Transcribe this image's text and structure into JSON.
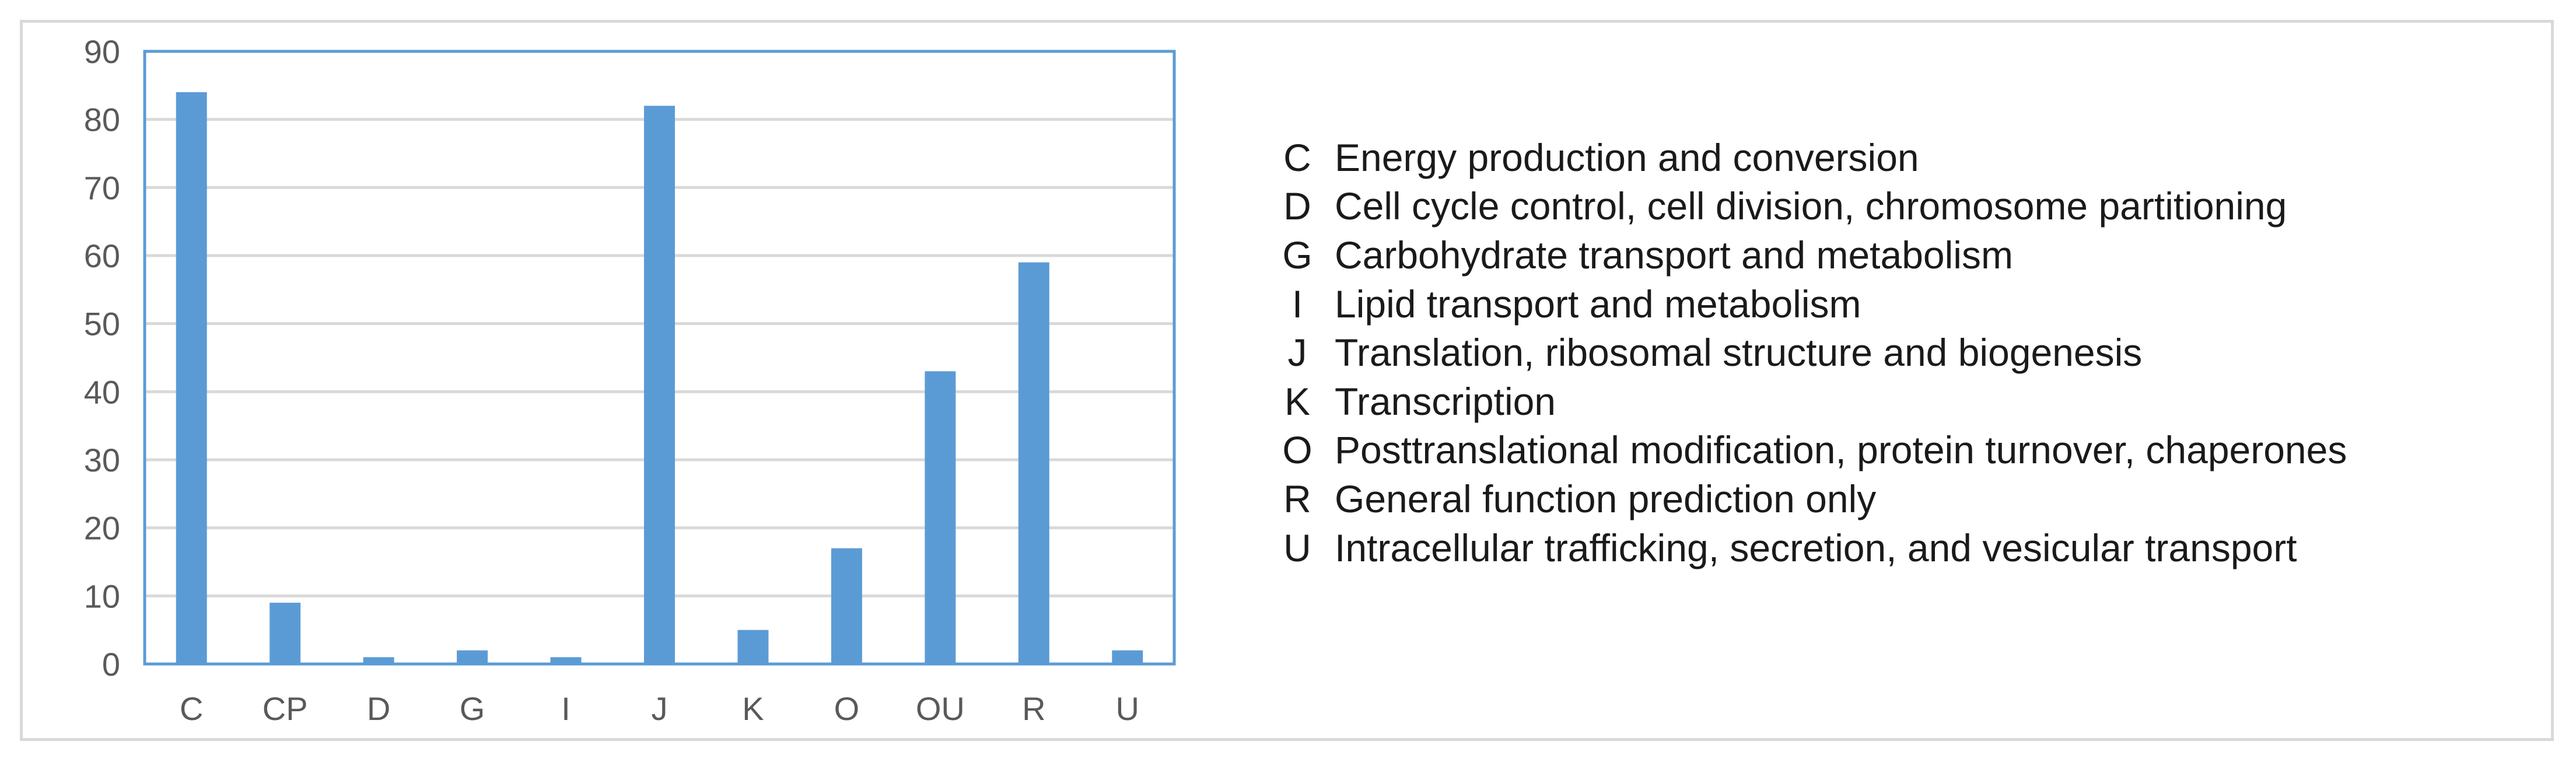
{
  "chart_data": {
    "type": "bar",
    "categories": [
      "C",
      "CP",
      "D",
      "G",
      "I",
      "J",
      "K",
      "O",
      "OU",
      "R",
      "U"
    ],
    "series": [
      {
        "values": [
          84,
          9,
          1,
          2,
          1,
          82,
          5,
          17,
          43,
          59,
          2
        ]
      }
    ],
    "ylim": [
      0,
      90
    ],
    "yticks": [
      0,
      10,
      20,
      30,
      40,
      50,
      60,
      70,
      80,
      90
    ],
    "grid": true,
    "title": "",
    "xlabel": "",
    "ylabel": "",
    "bar_color": "#5b9bd5",
    "plot_border_color": "#5b9bd5",
    "grid_color": "#d9d9d9"
  },
  "legend": [
    {
      "code": "C",
      "desc": "Energy production and conversion"
    },
    {
      "code": "D",
      "desc": "Cell cycle control, cell division, chromosome partitioning"
    },
    {
      "code": "G",
      "desc": "Carbohydrate transport and metabolism"
    },
    {
      "code": "I",
      "desc": "Lipid transport and metabolism"
    },
    {
      "code": "J",
      "desc": "Translation, ribosomal structure and biogenesis"
    },
    {
      "code": "K",
      "desc": "Transcription"
    },
    {
      "code": "O",
      "desc": "Posttranslational modification, protein turnover, chaperones"
    },
    {
      "code": "R",
      "desc": "General function prediction only"
    },
    {
      "code": "U",
      "desc": "Intracellular trafficking, secretion, and vesicular transport"
    }
  ]
}
